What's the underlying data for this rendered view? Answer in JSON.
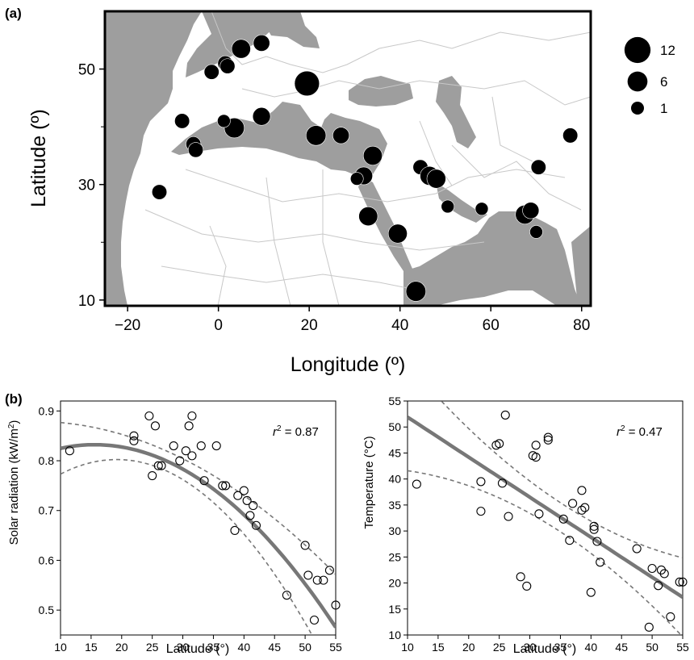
{
  "panel_labels": {
    "a": "(a)",
    "b": "(b)"
  },
  "colors": {
    "land": "#ffffff",
    "sea": "#9e9e9e",
    "border": "#c8c8c8",
    "marker": "#000000",
    "fit": "#777777",
    "ci": "#777777"
  },
  "chart_data": [
    {
      "type": "scatter",
      "panel": "(a)",
      "xlabel": "Longitude (º)",
      "ylabel": "Latitude (º)",
      "xlim": [
        -25,
        82
      ],
      "ylim": [
        9,
        60
      ],
      "xticks": [
        -20,
        0,
        20,
        40,
        60,
        80
      ],
      "yticks": [
        10,
        30,
        50
      ],
      "size_legend": [
        {
          "label": "12",
          "value": 12
        },
        {
          "label": "6",
          "value": 6
        },
        {
          "label": "1",
          "value": 1
        }
      ],
      "points": [
        {
          "lon": 19.5,
          "lat": 47.5,
          "n": 12
        },
        {
          "lon": 5,
          "lat": 53.5,
          "n": 5
        },
        {
          "lon": 9.5,
          "lat": 54.5,
          "n": 3
        },
        {
          "lon": 1.5,
          "lat": 51,
          "n": 2
        },
        {
          "lon": 2,
          "lat": 50.5,
          "n": 2
        },
        {
          "lon": -1.5,
          "lat": 49.5,
          "n": 2
        },
        {
          "lon": 3.5,
          "lat": 39.8,
          "n": 6
        },
        {
          "lon": 9.5,
          "lat": 41.8,
          "n": 4
        },
        {
          "lon": 1.2,
          "lat": 41,
          "n": 1
        },
        {
          "lon": -8,
          "lat": 41,
          "n": 2
        },
        {
          "lon": -5.5,
          "lat": 37,
          "n": 2
        },
        {
          "lon": -5,
          "lat": 36,
          "n": 2
        },
        {
          "lon": 21.5,
          "lat": 38.5,
          "n": 6
        },
        {
          "lon": 27,
          "lat": 38.5,
          "n": 3
        },
        {
          "lon": 34,
          "lat": 35,
          "n": 5
        },
        {
          "lon": 32,
          "lat": 31.5,
          "n": 4
        },
        {
          "lon": 30.5,
          "lat": 31,
          "n": 1
        },
        {
          "lon": 33,
          "lat": 24.5,
          "n": 5
        },
        {
          "lon": 39.5,
          "lat": 21.5,
          "n": 5
        },
        {
          "lon": 43.5,
          "lat": 11.5,
          "n": 6
        },
        {
          "lon": 44.5,
          "lat": 33,
          "n": 2
        },
        {
          "lon": 46.5,
          "lat": 31.5,
          "n": 5
        },
        {
          "lon": 48,
          "lat": 31,
          "n": 5
        },
        {
          "lon": 50.5,
          "lat": 26.2,
          "n": 1
        },
        {
          "lon": 58,
          "lat": 25.8,
          "n": 1
        },
        {
          "lon": 67.5,
          "lat": 24.8,
          "n": 5
        },
        {
          "lon": 68.8,
          "lat": 25.5,
          "n": 3
        },
        {
          "lon": 70,
          "lat": 21.8,
          "n": 1
        },
        {
          "lon": 70.5,
          "lat": 33,
          "n": 2
        },
        {
          "lon": 77.5,
          "lat": 38.5,
          "n": 2
        },
        {
          "lon": -13,
          "lat": 28.7,
          "n": 2
        }
      ]
    },
    {
      "type": "scatter",
      "panel": "(b) left",
      "xlabel": "Latitude (°)",
      "ylabel": "Solar radiation (kW/m²)",
      "ylabel_main": "Solar radiation (kW/m",
      "ylabel_sup": "2",
      "ylabel_end": ")",
      "annotation": {
        "pre": "r",
        "sup": "2",
        "post": " = 0.87"
      },
      "xlim": [
        10,
        55
      ],
      "ylim": [
        0.45,
        0.92
      ],
      "xticks": [
        10,
        15,
        20,
        25,
        30,
        35,
        40,
        45,
        50,
        55
      ],
      "yticks": [
        0.5,
        0.6,
        0.7,
        0.8,
        0.9
      ],
      "fit": {
        "form": "quadratic",
        "a": 0.775,
        "b": 0.00735,
        "c": -0.000236,
        "xmin": 10,
        "xmax": 55
      },
      "ci_band": {
        "halfwidth_center": 27,
        "half_min": 0.02,
        "half_k": 0.00011
      },
      "points": [
        [
          11.5,
          0.82
        ],
        [
          22,
          0.85
        ],
        [
          22,
          0.84
        ],
        [
          24.5,
          0.89
        ],
        [
          25,
          0.77
        ],
        [
          25.5,
          0.87
        ],
        [
          26,
          0.79
        ],
        [
          26.5,
          0.79
        ],
        [
          28.5,
          0.83
        ],
        [
          29.5,
          0.8
        ],
        [
          30.5,
          0.82
        ],
        [
          31,
          0.87
        ],
        [
          31.5,
          0.89
        ],
        [
          31.5,
          0.81
        ],
        [
          33,
          0.83
        ],
        [
          33.5,
          0.76
        ],
        [
          35.5,
          0.83
        ],
        [
          36.5,
          0.75
        ],
        [
          37,
          0.75
        ],
        [
          38.5,
          0.66
        ],
        [
          39,
          0.73
        ],
        [
          40,
          0.74
        ],
        [
          40.5,
          0.72
        ],
        [
          41,
          0.69
        ],
        [
          41.5,
          0.71
        ],
        [
          42,
          0.67
        ],
        [
          47,
          0.53
        ],
        [
          50,
          0.63
        ],
        [
          50.5,
          0.57
        ],
        [
          51.5,
          0.48
        ],
        [
          52,
          0.56
        ],
        [
          53,
          0.56
        ],
        [
          54,
          0.58
        ],
        [
          55,
          0.51
        ]
      ]
    },
    {
      "type": "scatter",
      "panel": "(b) right",
      "xlabel": "Latitude (°)",
      "ylabel": "Temperature (°C)",
      "annotation": {
        "pre": "r",
        "sup": "2",
        "post": " = 0.47"
      },
      "xlim": [
        10,
        55
      ],
      "ylim": [
        10,
        55
      ],
      "xticks": [
        10,
        15,
        20,
        25,
        30,
        35,
        40,
        45,
        50,
        55
      ],
      "yticks": [
        10,
        15,
        20,
        25,
        30,
        35,
        40,
        45,
        50,
        55
      ],
      "fit": {
        "form": "linear",
        "intercept": 59.6,
        "slope": -0.77,
        "xmin": 10,
        "xmax": 55
      },
      "ci_band": {
        "xmean": 35,
        "half_min": 2.8,
        "half_k": 0.012
      },
      "points": [
        [
          11.5,
          39
        ],
        [
          22,
          39.5
        ],
        [
          22,
          33.8
        ],
        [
          24.5,
          46.5
        ],
        [
          25,
          46.8
        ],
        [
          25.5,
          39.2
        ],
        [
          26,
          52.3
        ],
        [
          26.5,
          32.8
        ],
        [
          28.5,
          21.2
        ],
        [
          29.5,
          19.4
        ],
        [
          30.5,
          44.5
        ],
        [
          31,
          46.5
        ],
        [
          31,
          44.2
        ],
        [
          31.5,
          33.3
        ],
        [
          33,
          48
        ],
        [
          33,
          47.5
        ],
        [
          35.5,
          32.3
        ],
        [
          36.5,
          28.2
        ],
        [
          37,
          35.3
        ],
        [
          38.5,
          37.8
        ],
        [
          38.5,
          34
        ],
        [
          39,
          34.5
        ],
        [
          40,
          18.2
        ],
        [
          40.5,
          30.3
        ],
        [
          40.5,
          30.9
        ],
        [
          41,
          28
        ],
        [
          41.5,
          24
        ],
        [
          47.5,
          26.6
        ],
        [
          49.5,
          11.5
        ],
        [
          50,
          22.8
        ],
        [
          51,
          19.5
        ],
        [
          51.5,
          22.5
        ],
        [
          52,
          21.8
        ],
        [
          53,
          13.5
        ],
        [
          54.5,
          20.2
        ],
        [
          55,
          20.2
        ]
      ]
    }
  ]
}
